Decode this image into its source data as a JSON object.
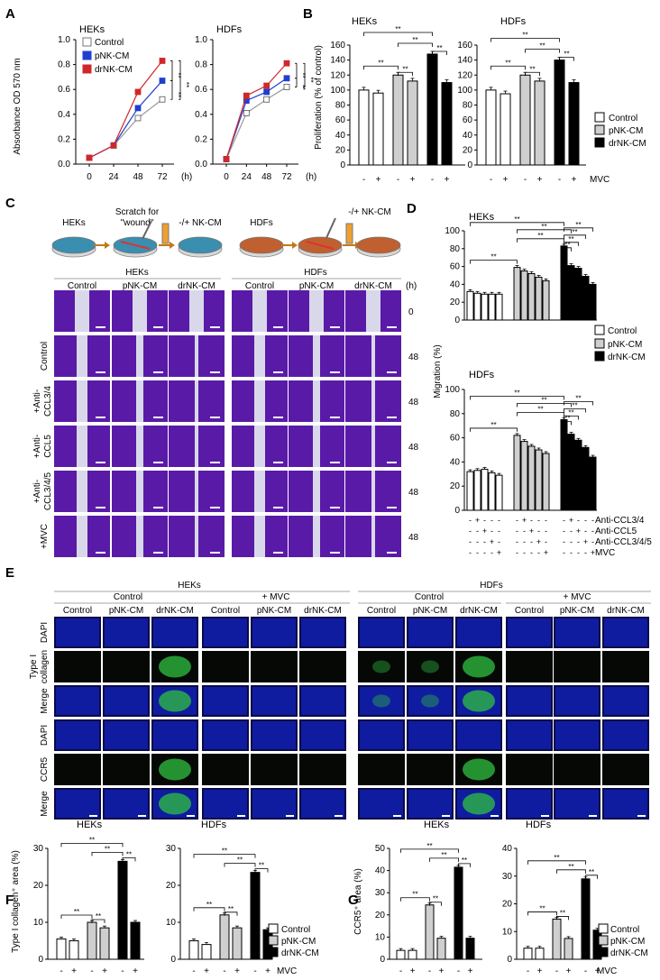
{
  "panel_labels": [
    "A",
    "B",
    "C",
    "D",
    "E",
    "F",
    "G"
  ],
  "legend3": [
    "Control",
    "pNK-CM",
    "drNK-CM"
  ],
  "colors": {
    "control_line": "#9a9a9a",
    "pnk_line": "#1f3fd0",
    "drnk_line": "#d0282a",
    "control_bar": "#ffffff",
    "pnk_bar": "#cfcfcf",
    "drnk_bar": "#000000",
    "dapi": "#1020b0",
    "collagen": "#30c040",
    "wound_purple": "#5a1aa8",
    "wound_gap": "#d8d8ea"
  },
  "panelA": {
    "ylabel": "Absorbance OD 570 nm",
    "xunit": "(h)",
    "sig": "**",
    "charts": [
      {
        "title": "HEKs",
        "x": [
          0,
          24,
          48,
          72
        ],
        "ylim": [
          0,
          1.0
        ],
        "yticks": [
          "0.0",
          "0.2",
          "0.4",
          "0.6",
          "0.8",
          "1.0"
        ],
        "series": [
          {
            "name": "Control",
            "values": [
              0.05,
              0.15,
              0.37,
              0.52
            ]
          },
          {
            "name": "pNK-CM",
            "values": [
              0.05,
              0.15,
              0.45,
              0.67
            ]
          },
          {
            "name": "drNK-CM",
            "values": [
              0.05,
              0.15,
              0.58,
              0.83
            ]
          }
        ]
      },
      {
        "title": "HDFs",
        "x": [
          0,
          24,
          48,
          72
        ],
        "ylim": [
          0,
          1.0
        ],
        "yticks": [
          "0.0",
          "0.2",
          "0.4",
          "0.6",
          "0.8",
          "1.0"
        ],
        "series": [
          {
            "name": "Control",
            "values": [
              0.04,
              0.41,
              0.52,
              0.62
            ]
          },
          {
            "name": "pNK-CM",
            "values": [
              0.04,
              0.51,
              0.58,
              0.69
            ]
          },
          {
            "name": "drNK-CM",
            "values": [
              0.04,
              0.55,
              0.63,
              0.81
            ]
          }
        ]
      }
    ]
  },
  "panelB": {
    "ylabel": "Proliferation (% of control)",
    "mvc_label": "MVC",
    "mvc_signs": [
      "-",
      "+",
      "-",
      "+",
      "-",
      "+"
    ],
    "sig": "**",
    "charts": [
      {
        "title": "HEKs",
        "ylim": [
          0,
          160
        ],
        "yticks": [
          "0",
          "20",
          "40",
          "60",
          "80",
          "100",
          "120",
          "140",
          "160"
        ],
        "values": [
          100,
          96,
          120,
          112,
          148,
          110
        ]
      },
      {
        "title": "HDFs",
        "ylim": [
          0,
          160
        ],
        "yticks": [
          "0",
          "20",
          "40",
          "60",
          "80",
          "100",
          "120",
          "140",
          "160"
        ],
        "values": [
          100,
          95,
          120,
          112,
          140,
          110
        ]
      }
    ]
  },
  "panelC": {
    "step1": "HEKs",
    "step2": "Scratch for",
    "step2b": "\"wound\"",
    "step3": "-/+ NK-CM",
    "step1b": "HDFs",
    "step3b": "-/+ NK-CM",
    "group_heks": "HEKs",
    "group_hdfs": "HDFs",
    "cols": [
      "Control",
      "pNK-CM",
      "drNK-CM",
      "Control",
      "pNK-CM",
      "drNK-CM"
    ],
    "time_unit": "(h)",
    "rows": [
      {
        "label1": "",
        "label2": "",
        "time": "0"
      },
      {
        "label1": "Control",
        "label2": "",
        "time": "48"
      },
      {
        "label1": "+Anti-",
        "label2": "CCL3/4",
        "time": "48"
      },
      {
        "label1": "+Anti-",
        "label2": "CCL5",
        "time": "48"
      },
      {
        "label1": "+Anti-",
        "label2": "CCL3/4/5",
        "time": "48"
      },
      {
        "label1": "+MVC",
        "label2": "",
        "time": "48"
      }
    ]
  },
  "panelD": {
    "ylabel": "Migration (%)",
    "sig": "**",
    "charts": [
      {
        "title": "HEKs",
        "ylim": [
          0,
          100
        ],
        "yticks": [
          "0",
          "20",
          "40",
          "60",
          "80",
          "100"
        ],
        "values": [
          32,
          30,
          29,
          29,
          29,
          59,
          55,
          52,
          48,
          44,
          83,
          61,
          58,
          49,
          40
        ]
      },
      {
        "title": "HDFs",
        "ylim": [
          0,
          100
        ],
        "yticks": [
          "0",
          "20",
          "40",
          "60",
          "80",
          "100"
        ],
        "values": [
          32,
          33,
          34,
          31,
          29,
          62,
          57,
          53,
          50,
          47,
          75,
          63,
          58,
          52,
          44
        ]
      }
    ],
    "treat_labels": [
      "Anti-CCL3/4",
      "Anti-CCL5",
      "Anti-CCL3/4/5",
      "MVC"
    ],
    "treat_signs": [
      [
        "-",
        "+",
        "-",
        "-",
        "-",
        "-",
        "+",
        "-",
        "-",
        "-",
        "-",
        "+",
        "-",
        "-",
        "-"
      ],
      [
        "-",
        "-",
        "+",
        "-",
        "-",
        "-",
        "-",
        "+",
        "-",
        "-",
        "-",
        "-",
        "+",
        "-",
        "-"
      ],
      [
        "-",
        "-",
        "-",
        "+",
        "-",
        "-",
        "-",
        "-",
        "+",
        "-",
        "-",
        "-",
        "-",
        "+",
        "-"
      ],
      [
        "-",
        "-",
        "-",
        "-",
        "+",
        "-",
        "-",
        "-",
        "-",
        "+",
        "-",
        "-",
        "-",
        "-",
        "+"
      ]
    ]
  },
  "panelE": {
    "group_heks": "HEKs",
    "group_hdfs": "HDFs",
    "sub_control": "Control",
    "sub_mvc": "+ MVC",
    "cols": [
      "Control",
      "pNK-CM",
      "drNK-CM",
      "Control",
      "pNK-CM",
      "drNK-CM",
      "Control",
      "pNK-CM",
      "drNK-CM",
      "Control",
      "pNK-CM",
      "drNK-CM"
    ],
    "rows": [
      {
        "label1": "DAPI",
        "label2": ""
      },
      {
        "label1": "Type I",
        "label2": "collagen"
      },
      {
        "label1": "Merge",
        "label2": ""
      },
      {
        "label1": "DAPI",
        "label2": ""
      },
      {
        "label1": "CCR5",
        "label2": ""
      },
      {
        "label1": "Merge",
        "label2": ""
      }
    ]
  },
  "panelF": {
    "ylabel": "Type I collagen⁺ area (%)",
    "mvc_label": "MVC",
    "mvc_signs": [
      "-",
      "+",
      "-",
      "+",
      "-",
      "+"
    ],
    "sig": "**",
    "charts": [
      {
        "title": "HEKs",
        "ylim": [
          0,
          30
        ],
        "yticks": [
          "0",
          "10",
          "20",
          "30"
        ],
        "values": [
          5.5,
          5.0,
          10,
          8.5,
          26.5,
          10
        ]
      },
      {
        "title": "HDFs",
        "ylim": [
          0,
          30
        ],
        "yticks": [
          "0",
          "10",
          "20",
          "30"
        ],
        "values": [
          5.0,
          4.0,
          12,
          8.5,
          23.5,
          8
        ]
      }
    ]
  },
  "panelG": {
    "ylabel": "CCR5⁺ area (%)",
    "mvc_label": "MVC",
    "mvc_signs": [
      "-",
      "+",
      "-",
      "+",
      "-",
      "+"
    ],
    "sig": "**",
    "charts": [
      {
        "title": "HEKs",
        "ylim": [
          0,
          50
        ],
        "yticks": [
          "0",
          "10",
          "20",
          "30",
          "40",
          "50"
        ],
        "values": [
          4.0,
          4.0,
          24.5,
          9.5,
          41.5,
          9.5
        ]
      },
      {
        "title": "HDFs",
        "ylim": [
          0,
          40
        ],
        "yticks": [
          "0",
          "10",
          "20",
          "30",
          "40"
        ],
        "values": [
          4.0,
          4.0,
          14.5,
          7.5,
          29,
          10.5
        ]
      }
    ]
  }
}
